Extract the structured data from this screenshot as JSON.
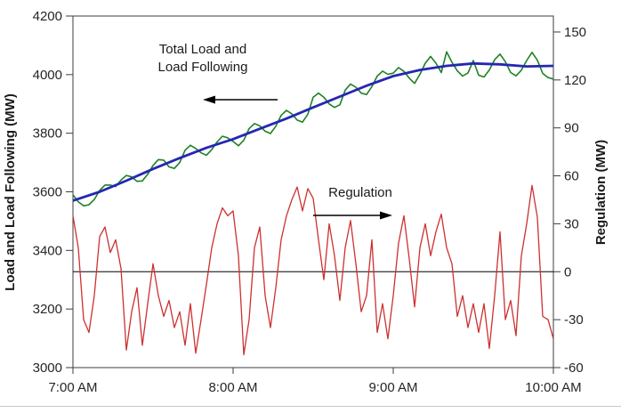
{
  "chart_data": {
    "type": "line",
    "title": "",
    "x": {
      "label": "",
      "tick_labels": [
        "7:00 AM",
        "8:00 AM",
        "9:00 AM",
        "10:00 AM"
      ],
      "tick_minutes": [
        0,
        60,
        120,
        180
      ],
      "range_minutes": [
        0,
        180
      ]
    },
    "y_left": {
      "label": "Load and Load Following (MW)",
      "range": [
        3000,
        4200
      ],
      "ticks": [
        3000,
        3200,
        3400,
        3600,
        3800,
        4000,
        4200
      ]
    },
    "y_right": {
      "label": "Regulation (MW)",
      "range": [
        -60,
        160
      ],
      "ticks": [
        -60,
        -30,
        0,
        30,
        60,
        90,
        120,
        150
      ]
    },
    "zero_line_right_value": 0,
    "grid": false,
    "legend": "none (labels drawn as in-plot annotations with arrows)",
    "series": [
      {
        "name": "Total Load",
        "axis": "left",
        "color": "#1e8124",
        "stroke_width": 1.6,
        "x_start_minutes": 0,
        "x_step_minutes": 2,
        "values": [
          3590,
          3566,
          3552,
          3556,
          3574,
          3605,
          3623,
          3623,
          3618,
          3640,
          3656,
          3651,
          3636,
          3637,
          3660,
          3690,
          3710,
          3708,
          3685,
          3680,
          3700,
          3742,
          3759,
          3748,
          3733,
          3725,
          3744,
          3770,
          3790,
          3784,
          3772,
          3757,
          3776,
          3816,
          3833,
          3825,
          3807,
          3799,
          3824,
          3861,
          3878,
          3866,
          3845,
          3838,
          3865,
          3923,
          3937,
          3923,
          3900,
          3888,
          3897,
          3947,
          3968,
          3957,
          3937,
          3932,
          3959,
          3995,
          4012,
          4001,
          4005,
          4024,
          4011,
          3988,
          3970,
          4001,
          4039,
          4062,
          4039,
          4007,
          4078,
          4042,
          4013,
          3995,
          4006,
          4048,
          3998,
          3992,
          4016,
          4051,
          4070,
          4044,
          4007,
          3996,
          4015,
          4048,
          4076,
          4049,
          4004,
          3990,
          3985
        ]
      },
      {
        "name": "Load Following",
        "axis": "left",
        "color": "#2527b2",
        "stroke_width": 2.8,
        "x_start_minutes": 0,
        "x_step_minutes": 10,
        "values": [
          3570,
          3600,
          3638,
          3678,
          3715,
          3750,
          3780,
          3815,
          3850,
          3888,
          3925,
          3962,
          3995,
          4016,
          4030,
          4038,
          4035,
          4028,
          4030
        ]
      },
      {
        "name": "Regulation",
        "axis": "right",
        "color": "#cc3030",
        "stroke_width": 1.3,
        "x_start_minutes": 0,
        "x_step_minutes": 2,
        "values": [
          35,
          15,
          -30,
          -38,
          -15,
          22,
          28,
          12,
          20,
          2,
          -49,
          -25,
          -10,
          -46,
          -20,
          5,
          -15,
          -28,
          -18,
          -35,
          -25,
          -46,
          -20,
          -51,
          -30,
          -8,
          15,
          30,
          40,
          35,
          38,
          10,
          -52,
          -30,
          15,
          28,
          -15,
          -35,
          -10,
          20,
          35,
          45,
          53,
          38,
          52,
          46,
          20,
          -5,
          30,
          10,
          -18,
          15,
          32,
          5,
          -25,
          -15,
          20,
          -38,
          -20,
          -42,
          -15,
          18,
          35,
          8,
          -22,
          15,
          30,
          10,
          25,
          36,
          15,
          5,
          -28,
          -15,
          -35,
          -20,
          -38,
          -20,
          -48,
          -15,
          25,
          -30,
          -18,
          -40,
          10,
          30,
          54,
          34,
          -28,
          -30,
          -42
        ]
      }
    ],
    "annotations": [
      {
        "name": "total-load",
        "lines": [
          "Total Load and",
          "Load Following"
        ],
        "arrow_direction": "left"
      },
      {
        "name": "regulation",
        "lines": [
          "Regulation"
        ],
        "arrow_direction": "right"
      }
    ]
  }
}
